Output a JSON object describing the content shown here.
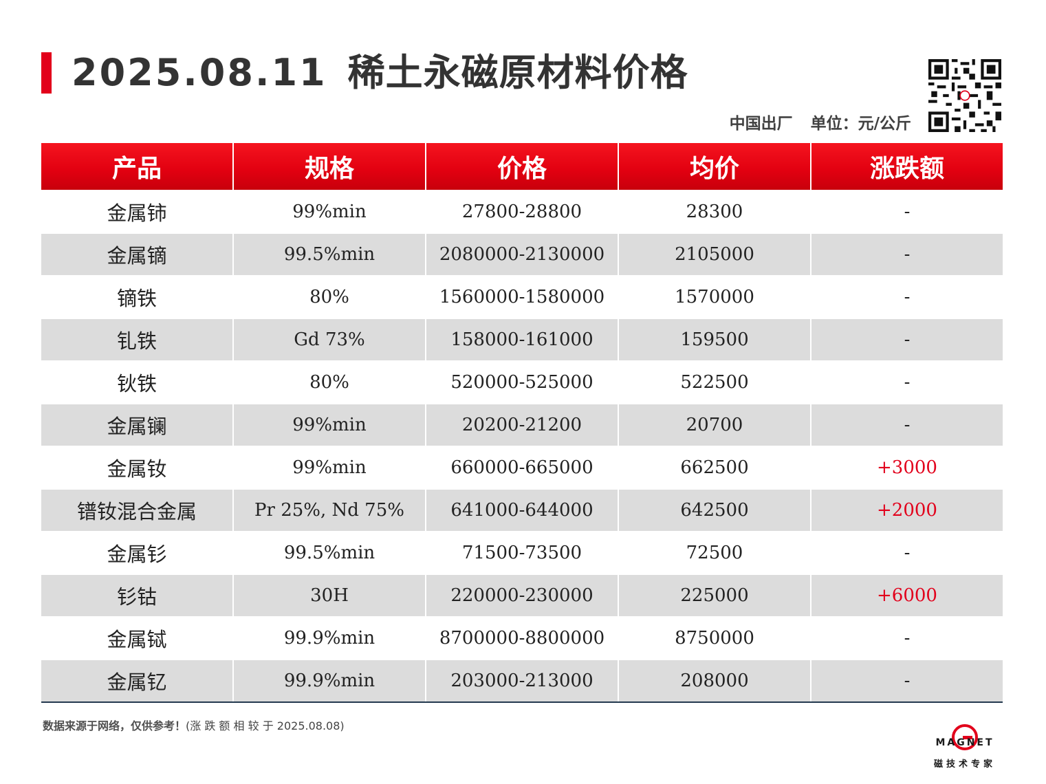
{
  "header": {
    "date": "2025.08.11",
    "title": "稀土永磁原材料价格",
    "origin": "中国出厂",
    "unit": "单位：元/公斤"
  },
  "table": {
    "columns": [
      "产品",
      "规格",
      "价格",
      "均价",
      "涨跌额"
    ],
    "rows": [
      {
        "product": "金属铈",
        "spec": "99%min",
        "price": "27800-28800",
        "avg": "28300",
        "change": "-"
      },
      {
        "product": "金属镝",
        "spec": "99.5%min",
        "price": "2080000-2130000",
        "avg": "2105000",
        "change": "-"
      },
      {
        "product": "镝铁",
        "spec": "80%",
        "price": "1560000-1580000",
        "avg": "1570000",
        "change": "-"
      },
      {
        "product": "钆铁",
        "spec": "Gd 73%",
        "price": "158000-161000",
        "avg": "159500",
        "change": "-"
      },
      {
        "product": "钬铁",
        "spec": "80%",
        "price": "520000-525000",
        "avg": "522500",
        "change": "-"
      },
      {
        "product": "金属镧",
        "spec": "99%min",
        "price": "20200-21200",
        "avg": "20700",
        "change": "-"
      },
      {
        "product": "金属钕",
        "spec": "99%min",
        "price": "660000-665000",
        "avg": "662500",
        "change": "+3000"
      },
      {
        "product": "镨钕混合金属",
        "spec": "Pr 25%, Nd 75%",
        "price": "641000-644000",
        "avg": "642500",
        "change": "+2000"
      },
      {
        "product": "金属钐",
        "spec": "99.5%min",
        "price": "71500-73500",
        "avg": "72500",
        "change": "-"
      },
      {
        "product": "钐钴",
        "spec": "30H",
        "price": "220000-230000",
        "avg": "225000",
        "change": "+6000"
      },
      {
        "product": "金属铽",
        "spec": "99.9%min",
        "price": "8700000-8800000",
        "avg": "8750000",
        "change": "-"
      },
      {
        "product": "金属钇",
        "spec": "99.9%min",
        "price": "203000-213000",
        "avg": "208000",
        "change": "-"
      }
    ]
  },
  "footer": {
    "note": "数据来源于网络，仅供参考！",
    "note_paren": "(涨 跌 额 相 较 于 2025.08.08)",
    "logo_text": "MAGNET",
    "logo_sub": "磁技术专家"
  },
  "colors": {
    "accent_red": "#e2001b",
    "row_shade": "#dcdcdc",
    "up_color": "#e2001b"
  },
  "icons": {
    "qr": "qr-code-icon",
    "logo": "magnet-logo-icon"
  }
}
